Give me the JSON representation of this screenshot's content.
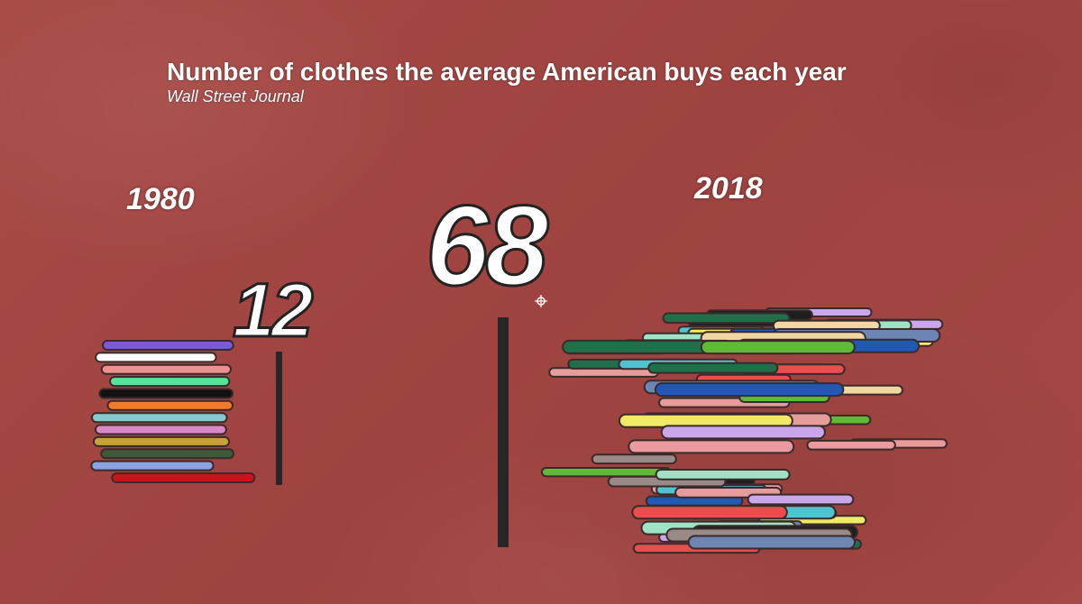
{
  "chart_data": {
    "type": "bar",
    "title": "Number of clothes the average American buys each year",
    "subtitle": "Wall Street Journal",
    "categories": [
      "1980",
      "2018"
    ],
    "values": [
      12,
      68
    ],
    "value_labels": [
      "12",
      "68"
    ],
    "ylim": [
      0,
      68
    ],
    "grid": false,
    "legend": "none"
  },
  "pile_colors": {
    "1980": [
      "#7b5ad6",
      "#ffffff",
      "#ee8f8f",
      "#55e39a",
      "#111111",
      "#f07c2a",
      "#88c9cf",
      "#d889c6",
      "#c9a13a",
      "#3d5a3b",
      "#8aa4e0",
      "#c8141a"
    ],
    "2018": [
      "#6c85b2",
      "#e79c9c",
      "#f1ea66",
      "#9fe3c7",
      "#9a8a87",
      "#e84e4e",
      "#1f6f4a",
      "#c9a7ea",
      "#f1d7a2",
      "#5fbb35",
      "#2158b3",
      "#1e1e1e",
      "#eb9aa0",
      "#4fc4d0"
    ]
  }
}
